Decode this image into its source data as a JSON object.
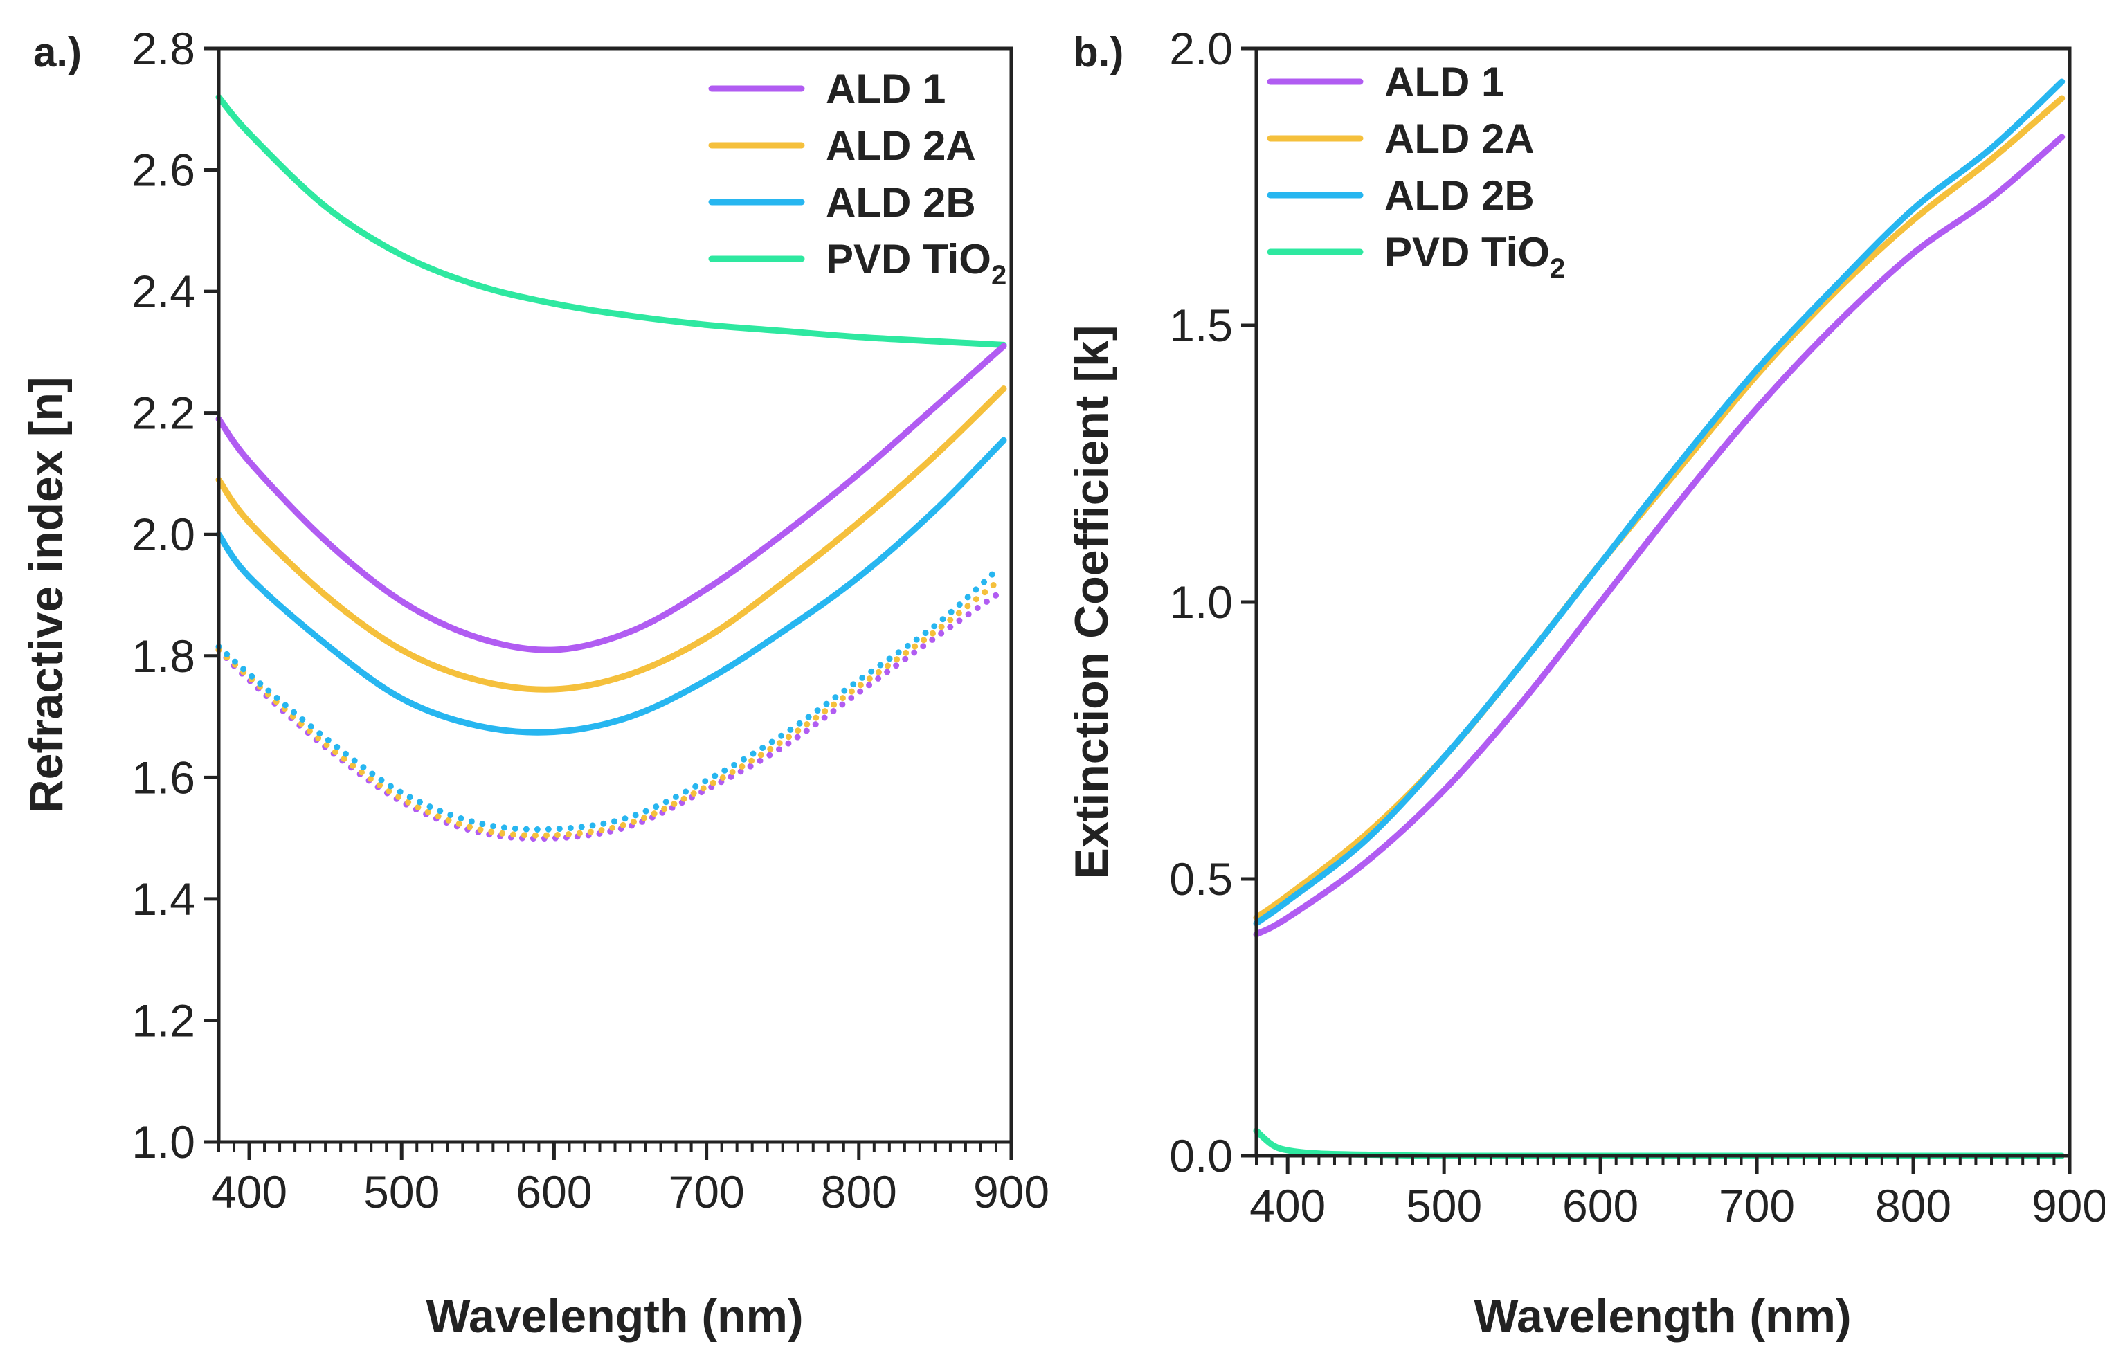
{
  "figure_colors": {
    "ALD 1": "#b15cf2",
    "ALD 2A": "#f5c03c",
    "ALD 2B": "#27b6f0",
    "PVD TiO2": "#2ee8a0"
  },
  "chart_data": [
    {
      "panel_label": "a.)",
      "type": "line",
      "xlabel": "Wavelength (nm)",
      "ylabel": "Refractive index [n]",
      "xlim": [
        380,
        900
      ],
      "ylim": [
        1.0,
        2.8
      ],
      "x_ticks": [
        400,
        500,
        600,
        700,
        800,
        900
      ],
      "x_tick_labels": [
        "400",
        "500",
        "600",
        "700",
        "800",
        "900"
      ],
      "y_ticks": [
        1.0,
        1.2,
        1.4,
        1.6,
        1.8,
        2.0,
        2.2,
        2.4,
        2.6,
        2.8
      ],
      "y_tick_labels": [
        "1.0",
        "1.2",
        "1.4",
        "1.6",
        "1.8",
        "2.0",
        "2.2",
        "2.4",
        "2.6",
        "2.8"
      ],
      "legend": {
        "placement": "top-right",
        "entries": [
          {
            "key": "ALD 1",
            "label": "ALD 1",
            "sub": ""
          },
          {
            "key": "ALD 2A",
            "label": "ALD 2A",
            "sub": ""
          },
          {
            "key": "ALD 2B",
            "label": "ALD 2B",
            "sub": ""
          },
          {
            "key": "PVD TiO2",
            "label": "PVD TiO",
            "sub": "2"
          }
        ]
      },
      "series": [
        {
          "name": "PVD TiO2",
          "style": "solid",
          "x": [
            380,
            400,
            450,
            500,
            550,
            600,
            650,
            700,
            750,
            800,
            850,
            895
          ],
          "y": [
            2.72,
            2.66,
            2.54,
            2.46,
            2.41,
            2.38,
            2.36,
            2.345,
            2.335,
            2.325,
            2.318,
            2.312
          ]
        },
        {
          "name": "ALD 1",
          "style": "solid",
          "x": [
            380,
            400,
            450,
            500,
            550,
            600,
            650,
            700,
            750,
            800,
            850,
            895
          ],
          "y": [
            2.19,
            2.12,
            1.99,
            1.89,
            1.83,
            1.81,
            1.84,
            1.91,
            2.0,
            2.1,
            2.21,
            2.31
          ]
        },
        {
          "name": "ALD 2A",
          "style": "solid",
          "x": [
            380,
            400,
            450,
            500,
            550,
            600,
            650,
            700,
            750,
            800,
            850,
            895
          ],
          "y": [
            2.09,
            2.02,
            1.9,
            1.81,
            1.76,
            1.745,
            1.77,
            1.83,
            1.92,
            2.02,
            2.13,
            2.24
          ]
        },
        {
          "name": "ALD 2B",
          "style": "solid",
          "x": [
            380,
            400,
            450,
            500,
            550,
            600,
            650,
            700,
            750,
            800,
            850,
            895
          ],
          "y": [
            2.0,
            1.93,
            1.82,
            1.73,
            1.685,
            1.675,
            1.7,
            1.76,
            1.84,
            1.93,
            2.04,
            2.155
          ]
        },
        {
          "name": "ALD 1 (dotted)",
          "color_key": "ALD 1",
          "style": "dotted",
          "x": [
            380,
            400,
            450,
            500,
            550,
            600,
            650,
            700,
            750,
            800,
            850,
            890
          ],
          "y": [
            1.81,
            1.76,
            1.65,
            1.56,
            1.51,
            1.5,
            1.52,
            1.58,
            1.65,
            1.74,
            1.83,
            1.9
          ]
        },
        {
          "name": "ALD 2A (dotted)",
          "color_key": "ALD 2A",
          "style": "dotted",
          "x": [
            380,
            400,
            450,
            500,
            550,
            600,
            650,
            700,
            750,
            800,
            850,
            890
          ],
          "y": [
            1.81,
            1.765,
            1.655,
            1.565,
            1.515,
            1.505,
            1.525,
            1.585,
            1.66,
            1.75,
            1.84,
            1.92
          ]
        },
        {
          "name": "ALD 2B (dotted)",
          "color_key": "ALD 2B",
          "style": "dotted",
          "x": [
            380,
            400,
            450,
            500,
            550,
            600,
            650,
            700,
            750,
            800,
            850,
            890
          ],
          "y": [
            1.815,
            1.77,
            1.665,
            1.575,
            1.525,
            1.515,
            1.535,
            1.595,
            1.67,
            1.76,
            1.85,
            1.94
          ]
        }
      ]
    },
    {
      "panel_label": "b.)",
      "type": "line",
      "xlabel": "Wavelength (nm)",
      "ylabel": "Extinction Coefficient [k]",
      "xlim": [
        380,
        900
      ],
      "ylim": [
        0.0,
        2.0
      ],
      "x_ticks": [
        400,
        500,
        600,
        700,
        800,
        900
      ],
      "x_tick_labels": [
        "400",
        "500",
        "600",
        "700",
        "800",
        "900"
      ],
      "y_ticks": [
        0.0,
        0.5,
        1.0,
        1.5,
        2.0
      ],
      "y_tick_labels": [
        "0.0",
        "0.5",
        "1.0",
        "1.5",
        "2.0"
      ],
      "legend": {
        "placement": "top-left",
        "entries": [
          {
            "key": "ALD 1",
            "label": "ALD 1",
            "sub": ""
          },
          {
            "key": "ALD 2A",
            "label": "ALD 2A",
            "sub": ""
          },
          {
            "key": "ALD 2B",
            "label": "ALD 2B",
            "sub": ""
          },
          {
            "key": "PVD TiO2",
            "label": "PVD TiO",
            "sub": "2"
          }
        ]
      },
      "series": [
        {
          "name": "ALD 1",
          "style": "solid",
          "x": [
            380,
            400,
            450,
            500,
            550,
            600,
            650,
            700,
            750,
            800,
            850,
            895
          ],
          "y": [
            0.4,
            0.43,
            0.53,
            0.66,
            0.82,
            1.0,
            1.18,
            1.35,
            1.5,
            1.63,
            1.73,
            1.84
          ]
        },
        {
          "name": "ALD 2A",
          "style": "solid",
          "x": [
            380,
            400,
            450,
            500,
            550,
            600,
            650,
            700,
            750,
            800,
            850,
            895
          ],
          "y": [
            0.43,
            0.47,
            0.58,
            0.72,
            0.89,
            1.07,
            1.24,
            1.41,
            1.56,
            1.69,
            1.8,
            1.91
          ]
        },
        {
          "name": "ALD 2B",
          "style": "solid",
          "x": [
            380,
            400,
            450,
            500,
            550,
            600,
            650,
            700,
            750,
            800,
            850,
            895
          ],
          "y": [
            0.42,
            0.46,
            0.57,
            0.72,
            0.89,
            1.07,
            1.25,
            1.42,
            1.57,
            1.71,
            1.82,
            1.94
          ]
        },
        {
          "name": "PVD TiO2",
          "style": "solid",
          "x": [
            380,
            390,
            400,
            420,
            450,
            500,
            600,
            700,
            800,
            895
          ],
          "y": [
            0.045,
            0.02,
            0.01,
            0.004,
            0.002,
            0.0,
            0.0,
            0.0,
            0.0,
            0.0
          ]
        }
      ]
    }
  ]
}
